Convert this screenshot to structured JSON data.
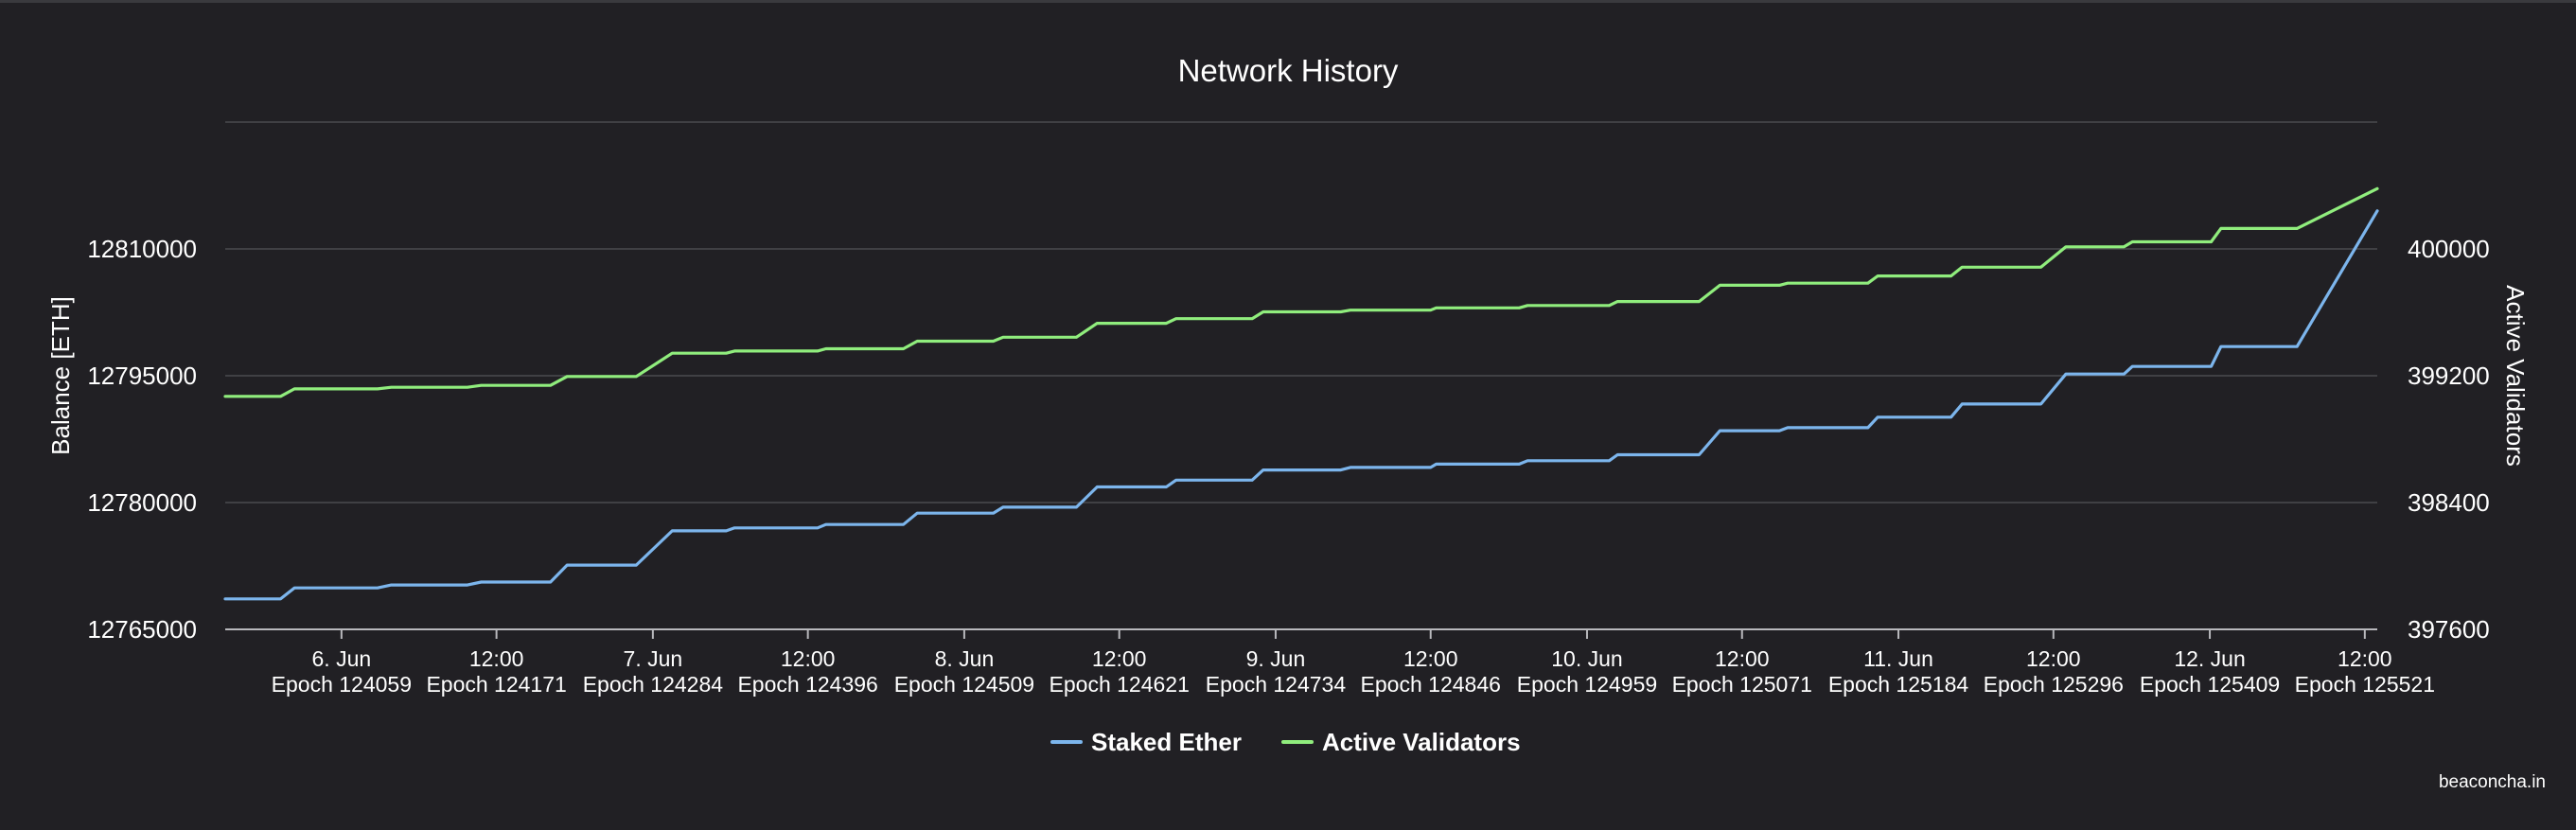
{
  "chart_data": {
    "type": "line",
    "title": "Network History",
    "y_left": {
      "label": "Balance [ETH]",
      "range": [
        12765000,
        12825000
      ],
      "ticks": [
        "12765000",
        "12780000",
        "12795000",
        "12810000"
      ]
    },
    "y_right": {
      "label": "Active Validators",
      "range": [
        397600,
        400800
      ],
      "ticks": [
        "397600",
        "398400",
        "399200",
        "400000"
      ]
    },
    "x": {
      "range": [
        123975,
        125530
      ],
      "ticks": [
        {
          "epoch": 124059,
          "label": "6. Jun",
          "sublabel": "Epoch 124059"
        },
        {
          "epoch": 124171,
          "label": "12:00",
          "sublabel": "Epoch 124171"
        },
        {
          "epoch": 124284,
          "label": "7. Jun",
          "sublabel": "Epoch 124284"
        },
        {
          "epoch": 124396,
          "label": "12:00",
          "sublabel": "Epoch 124396"
        },
        {
          "epoch": 124509,
          "label": "8. Jun",
          "sublabel": "Epoch 124509"
        },
        {
          "epoch": 124621,
          "label": "12:00",
          "sublabel": "Epoch 124621"
        },
        {
          "epoch": 124734,
          "label": "9. Jun",
          "sublabel": "Epoch 124734"
        },
        {
          "epoch": 124846,
          "label": "12:00",
          "sublabel": "Epoch 124846"
        },
        {
          "epoch": 124959,
          "label": "10. Jun",
          "sublabel": "Epoch 124959"
        },
        {
          "epoch": 125071,
          "label": "12:00",
          "sublabel": "Epoch 125071"
        },
        {
          "epoch": 125184,
          "label": "11. Jun",
          "sublabel": "Epoch 125184"
        },
        {
          "epoch": 125296,
          "label": "12:00",
          "sublabel": "Epoch 125296"
        },
        {
          "epoch": 125409,
          "label": "12. Jun",
          "sublabel": "Epoch 125409"
        },
        {
          "epoch": 125521,
          "label": "12:00",
          "sublabel": "Epoch 125521"
        }
      ]
    },
    "series": [
      {
        "name": "Staked Ether",
        "axis": "left",
        "color": "#7cb5ec",
        "points": [
          [
            123975,
            12768600
          ],
          [
            124015,
            12768600
          ],
          [
            124025,
            12769900
          ],
          [
            124085,
            12769900
          ],
          [
            124095,
            12770250
          ],
          [
            124150,
            12770250
          ],
          [
            124160,
            12770600
          ],
          [
            124210,
            12770600
          ],
          [
            124222,
            12772600
          ],
          [
            124272,
            12772600
          ],
          [
            124298,
            12776650
          ],
          [
            124337,
            12776650
          ],
          [
            124343,
            12777000
          ],
          [
            124403,
            12777000
          ],
          [
            124409,
            12777400
          ],
          [
            124465,
            12777400
          ],
          [
            124475,
            12778750
          ],
          [
            124530,
            12778750
          ],
          [
            124537,
            12779450
          ],
          [
            124590,
            12779450
          ],
          [
            124605,
            12781850
          ],
          [
            124655,
            12781850
          ],
          [
            124662,
            12782650
          ],
          [
            124717,
            12782650
          ],
          [
            124725,
            12783850
          ],
          [
            124781,
            12783850
          ],
          [
            124788,
            12784150
          ],
          [
            124846,
            12784150
          ],
          [
            124850,
            12784550
          ],
          [
            124910,
            12784550
          ],
          [
            124916,
            12784950
          ],
          [
            124975,
            12784950
          ],
          [
            124981,
            12785650
          ],
          [
            125040,
            12785650
          ],
          [
            125055,
            12788500
          ],
          [
            125098,
            12788500
          ],
          [
            125104,
            12788850
          ],
          [
            125162,
            12788850
          ],
          [
            125169,
            12790100
          ],
          [
            125222,
            12790100
          ],
          [
            125230,
            12791650
          ],
          [
            125287,
            12791650
          ],
          [
            125305,
            12795200
          ],
          [
            125347,
            12795200
          ],
          [
            125353,
            12796100
          ],
          [
            125410,
            12796100
          ],
          [
            125417,
            12798450
          ],
          [
            125472,
            12798450
          ],
          [
            125530,
            12814500
          ]
        ]
      },
      {
        "name": "Active Validators",
        "axis": "right",
        "color": "#90ed7d",
        "points": [
          [
            123975,
            399070
          ],
          [
            124015,
            399070
          ],
          [
            124025,
            399117
          ],
          [
            124085,
            399117
          ],
          [
            124095,
            399127
          ],
          [
            124150,
            399127
          ],
          [
            124160,
            399139
          ],
          [
            124210,
            399139
          ],
          [
            124222,
            399195
          ],
          [
            124272,
            399195
          ],
          [
            124298,
            399342
          ],
          [
            124337,
            399342
          ],
          [
            124343,
            399356
          ],
          [
            124403,
            399356
          ],
          [
            124409,
            399370
          ],
          [
            124465,
            399370
          ],
          [
            124475,
            399418
          ],
          [
            124530,
            399418
          ],
          [
            124537,
            399443
          ],
          [
            124590,
            399443
          ],
          [
            124605,
            399531
          ],
          [
            124655,
            399531
          ],
          [
            124662,
            399560
          ],
          [
            124717,
            399560
          ],
          [
            124725,
            399603
          ],
          [
            124781,
            399603
          ],
          [
            124788,
            399614
          ],
          [
            124846,
            399614
          ],
          [
            124850,
            399628
          ],
          [
            124910,
            399628
          ],
          [
            124916,
            399643
          ],
          [
            124975,
            399643
          ],
          [
            124981,
            399668
          ],
          [
            125040,
            399668
          ],
          [
            125055,
            399771
          ],
          [
            125098,
            399771
          ],
          [
            125104,
            399784
          ],
          [
            125162,
            399784
          ],
          [
            125169,
            399829
          ],
          [
            125222,
            399829
          ],
          [
            125230,
            399885
          ],
          [
            125287,
            399885
          ],
          [
            125305,
            400013
          ],
          [
            125347,
            400013
          ],
          [
            125353,
            400045
          ],
          [
            125410,
            400045
          ],
          [
            125417,
            400129
          ],
          [
            125472,
            400129
          ],
          [
            125530,
            400380
          ]
        ]
      }
    ],
    "grid": true,
    "legend": {
      "position": "bottom-center",
      "items": [
        "Staked Ether",
        "Active Validators"
      ]
    },
    "credit": "beaconcha.in"
  }
}
